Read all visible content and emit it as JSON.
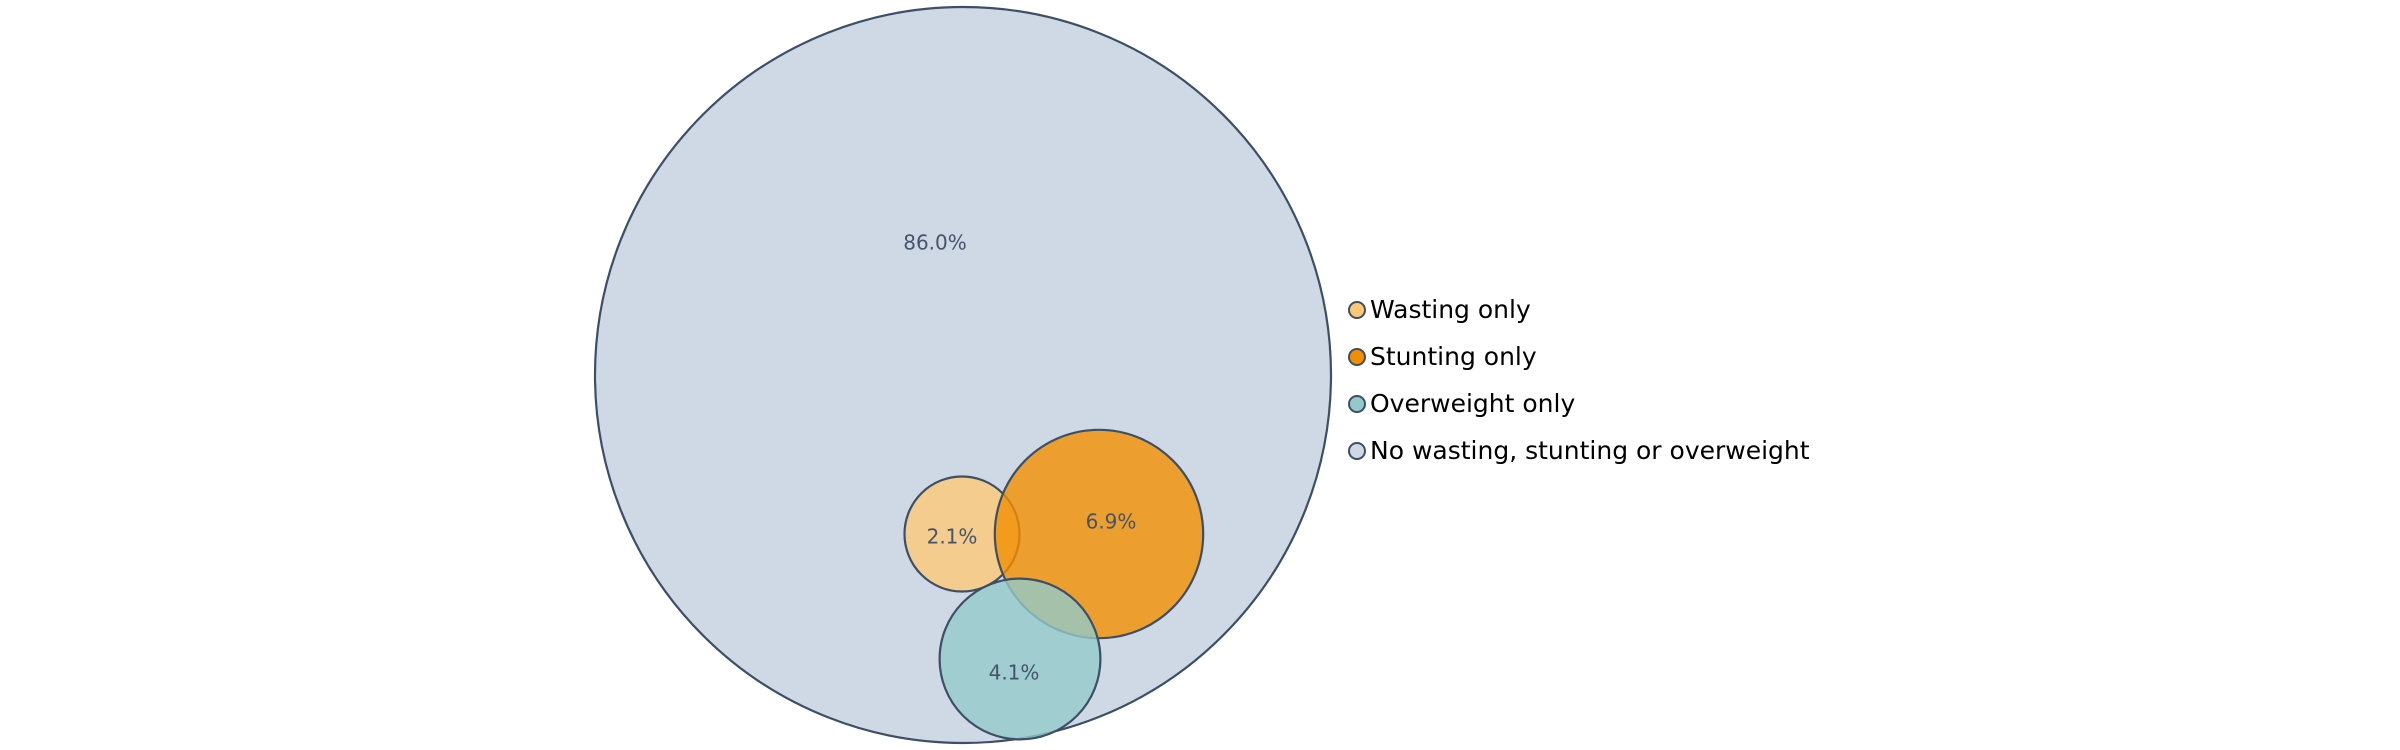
{
  "chart_data": {
    "type": "bubble-venn",
    "title": "",
    "series": [
      {
        "name": "No wasting, stunting or overweight",
        "value": 86.0,
        "label": "86.0%",
        "color": "#cfd9e5"
      },
      {
        "name": "Wasting only",
        "value": 2.1,
        "label": "2.1%",
        "color": "#fcc878"
      },
      {
        "name": "Stunting only",
        "value": 6.9,
        "label": "6.9%",
        "color": "#f28f00"
      },
      {
        "name": "Overweight only",
        "value": 4.1,
        "label": "4.1%",
        "color": "#93c9c9"
      }
    ],
    "legend": {
      "placement": "right",
      "items": [
        {
          "label": "Wasting only",
          "color": "#fcc878"
        },
        {
          "label": "Stunting only",
          "color": "#f28f00"
        },
        {
          "label": "Overweight only",
          "color": "#93c9c9"
        },
        {
          "label": "No wasting, stunting or overweight",
          "color": "#cfd9e5"
        }
      ]
    },
    "outline_color": "#3d4f66"
  }
}
